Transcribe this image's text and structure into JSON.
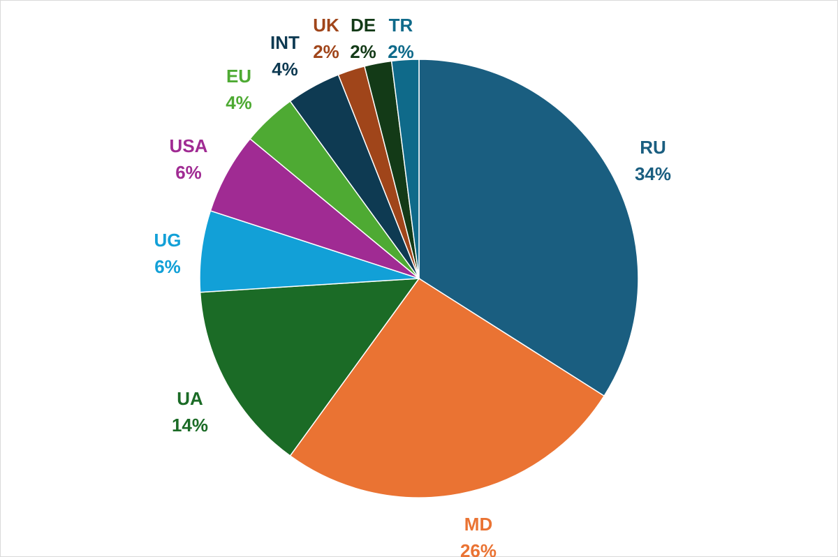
{
  "chart_data": {
    "type": "pie",
    "title": "",
    "start_angle_deg": 0,
    "direction": "clockwise",
    "legend": "none",
    "slices": [
      {
        "category": "RU",
        "value": 34,
        "label": "34%",
        "color": "#1a5e80"
      },
      {
        "category": "MD",
        "value": 26,
        "label": "26%",
        "color": "#ea7333"
      },
      {
        "category": "UA",
        "value": 14,
        "label": "14%",
        "color": "#1b6b26"
      },
      {
        "category": "UG",
        "value": 6,
        "label": "6%",
        "color": "#12a0d7"
      },
      {
        "category": "USA",
        "value": 6,
        "label": "6%",
        "color": "#a02b93"
      },
      {
        "category": "EU",
        "value": 4,
        "label": "4%",
        "color": "#4eaa33"
      },
      {
        "category": "INT",
        "value": 4,
        "label": "4%",
        "color": "#0e3a52"
      },
      {
        "category": "UK",
        "value": 2,
        "label": "2%",
        "color": "#a0451a"
      },
      {
        "category": "DE",
        "value": 2,
        "label": "2%",
        "color": "#133a17"
      },
      {
        "category": "TR",
        "value": 2,
        "label": "2%",
        "color": "#0f6a8a"
      }
    ]
  }
}
